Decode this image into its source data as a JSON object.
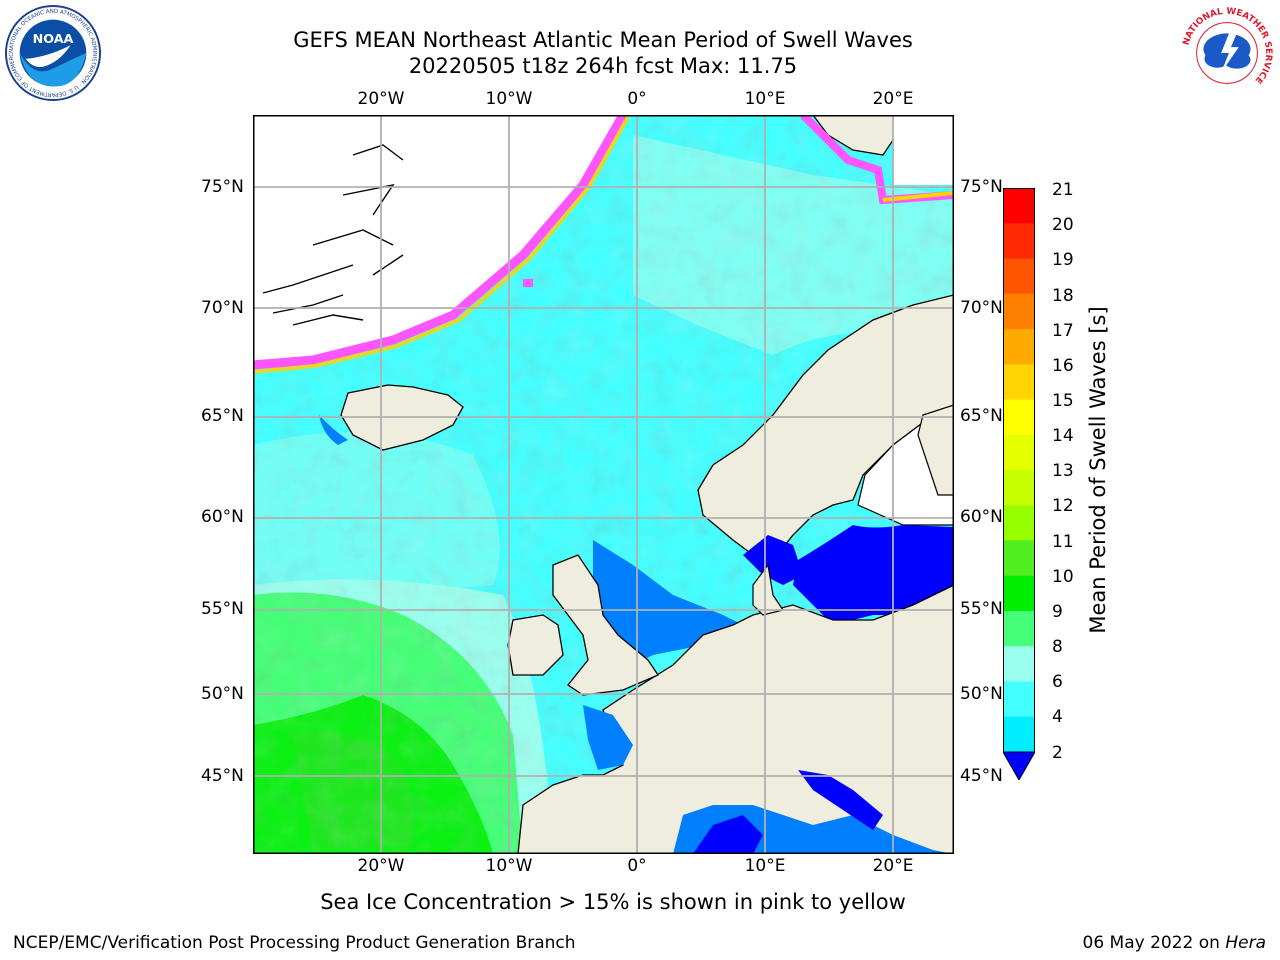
{
  "header": {
    "title_line1": "GEFS MEAN Northeast Atlantic Mean Period of Swell Waves",
    "title_line2": "20220505 t18z 264h fcst   Max: 11.75"
  },
  "logos": {
    "left": "NOAA",
    "left_ring": "NATIONAL OCEANIC AND ATMOSPHERIC ADMINISTRATION · U.S. DEPARTMENT OF COMMERCE",
    "right_ring": "NATIONAL WEATHER SERVICE"
  },
  "axes": {
    "lat_labels": [
      "75°N",
      "70°N",
      "65°N",
      "60°N",
      "55°N",
      "50°N",
      "45°N"
    ],
    "lon_labels": [
      "20°W",
      "10°W",
      "0°",
      "10°E",
      "20°E"
    ]
  },
  "colorbar": {
    "title": "Mean Period of Swell Waves [s]",
    "ticks": [
      "21",
      "20",
      "19",
      "18",
      "17",
      "16",
      "15",
      "14",
      "13",
      "12",
      "11",
      "10",
      "9",
      "8",
      "6",
      "4",
      "2"
    ],
    "colors": [
      "#ff0000",
      "#ff2a00",
      "#ff5500",
      "#ff7f00",
      "#ffaa00",
      "#ffd400",
      "#ffff00",
      "#e6ff00",
      "#c8ff00",
      "#95ff00",
      "#50ee20",
      "#00ee00",
      "#44ff77",
      "#99ffee",
      "#44ffff",
      "#00eeff",
      "#0080ff",
      "#0000ff"
    ]
  },
  "footer": {
    "ice_note": "Sea Ice Concentration > 15% is shown in pink to yellow",
    "credit": "NCEP/EMC/Verification Post Processing Product Generation Branch",
    "date": "06 May 2022 on",
    "machine": "Hera"
  }
}
